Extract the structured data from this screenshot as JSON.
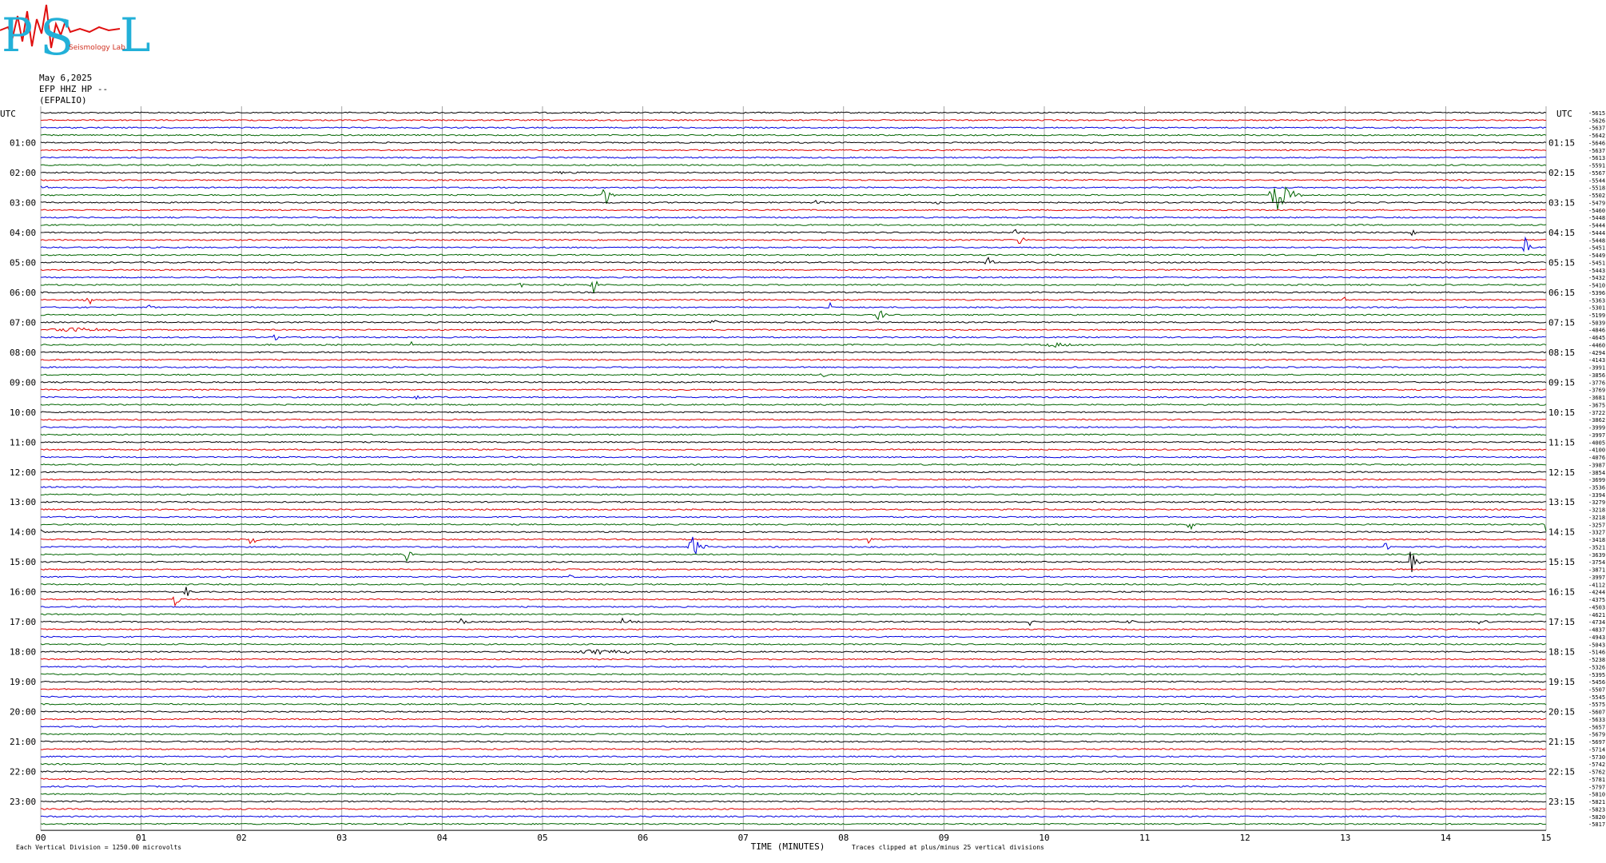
{
  "header": {
    "logo_text": "PSL",
    "logo_subtitle": "Seismology Lab",
    "date": "May 6,2025",
    "channel": "EFP HHZ HP --",
    "station": "(EFPALIO)"
  },
  "colors": {
    "trace_cycle": [
      "#000000",
      "#e00000",
      "#0000e0",
      "#006400"
    ],
    "grid": "#808080",
    "logo_cyan": "#22b0d8",
    "logo_red": "#e01010"
  },
  "chart_data": {
    "type": "helicorder",
    "xlabel": "TIME (MINUTES)",
    "x_ticks": [
      "00",
      "01",
      "02",
      "03",
      "04",
      "05",
      "06",
      "07",
      "08",
      "09",
      "10",
      "11",
      "12",
      "13",
      "14",
      "15"
    ],
    "xlim": [
      0,
      15
    ],
    "left_axis_title": "UTC",
    "right_axis_title": "UTC",
    "left_hour_labels": [
      "01:00",
      "02:00",
      "03:00",
      "04:00",
      "05:00",
      "06:00",
      "07:00",
      "08:00",
      "09:00",
      "10:00",
      "11:00",
      "12:00",
      "13:00",
      "14:00",
      "15:00",
      "16:00",
      "17:00",
      "18:00",
      "19:00",
      "20:00",
      "21:00",
      "22:00",
      "23:00"
    ],
    "right_hour_labels": [
      "01:15",
      "02:15",
      "03:15",
      "04:15",
      "05:15",
      "06:15",
      "07:15",
      "08:15",
      "09:15",
      "10:15",
      "11:15",
      "12:15",
      "13:15",
      "14:15",
      "15:15",
      "16:15",
      "17:15",
      "18:15",
      "19:15",
      "20:15",
      "21:15",
      "22:15",
      "23:15"
    ],
    "line_count": 96,
    "minutes_per_line": 15,
    "line_offsets": [
      "-5615",
      "-5626",
      "-5637",
      "-5642",
      "-5646",
      "-5637",
      "-5613",
      "-5591",
      "-5567",
      "-5544",
      "-5518",
      "-5502",
      "-5479",
      "-5460",
      "-5448",
      "-5444",
      "-5444",
      "-5448",
      "-5451",
      "-5449",
      "-5451",
      "-5443",
      "-5432",
      "-5410",
      "-5396",
      "-5363",
      "-5301",
      "-5199",
      "-5039",
      "-4846",
      "-4645",
      "-4460",
      "-4294",
      "-4143",
      "-3991",
      "-3856",
      "-3776",
      "-3769",
      "-3681",
      "-3675",
      "-3722",
      "-3862",
      "-3999",
      "-3997",
      "-4005",
      "-4100",
      "-4076",
      "-3987",
      "-3854",
      "-3699",
      "-3536",
      "-3394",
      "-3279",
      "-3218",
      "-3218",
      "-3257",
      "-3327",
      "-3418",
      "-3521",
      "-3639",
      "-3754",
      "-3871",
      "-3997",
      "-4112",
      "-4244",
      "-4375",
      "-4503",
      "-4621",
      "-4734",
      "-4837",
      "-4943",
      "-5043",
      "-5146",
      "-5238",
      "-5326",
      "-5395",
      "-5456",
      "-5507",
      "-5545",
      "-5575",
      "-5607",
      "-5633",
      "-5657",
      "-5679",
      "-5697",
      "-5714",
      "-5730",
      "-5742",
      "-5762",
      "-5781",
      "-5797",
      "-5810",
      "-5821",
      "-5823",
      "-5820",
      "-5817"
    ],
    "events": [
      {
        "line": 8,
        "minute": 5.1,
        "amp": 2,
        "dur": 0.35
      },
      {
        "line": 10,
        "minute": 0.0,
        "amp": 2,
        "dur": 0.25
      },
      {
        "line": 11,
        "minute": 5.62,
        "amp": 16,
        "dur": 0.12
      },
      {
        "line": 11,
        "minute": 12.32,
        "amp": 22,
        "dur": 0.3
      },
      {
        "line": 12,
        "minute": 7.73,
        "amp": 10,
        "dur": 0.08
      },
      {
        "line": 12,
        "minute": 8.92,
        "amp": 6,
        "dur": 0.08
      },
      {
        "line": 12,
        "minute": 10.43,
        "amp": 4,
        "dur": 0.06
      },
      {
        "line": 16,
        "minute": 9.69,
        "amp": 10,
        "dur": 0.08
      },
      {
        "line": 16,
        "minute": 13.67,
        "amp": 6,
        "dur": 0.08
      },
      {
        "line": 17,
        "minute": 9.75,
        "amp": 9,
        "dur": 0.08
      },
      {
        "line": 18,
        "minute": 14.79,
        "amp": 14,
        "dur": 0.1
      },
      {
        "line": 20,
        "minute": 9.43,
        "amp": 14,
        "dur": 0.08
      },
      {
        "line": 23,
        "minute": 4.78,
        "amp": 10,
        "dur": 0.08
      },
      {
        "line": 23,
        "minute": 5.5,
        "amp": 14,
        "dur": 0.12
      },
      {
        "line": 25,
        "minute": 0.46,
        "amp": 12,
        "dur": 0.12
      },
      {
        "line": 25,
        "minute": 8.6,
        "amp": 8,
        "dur": 0.06
      },
      {
        "line": 25,
        "minute": 12.98,
        "amp": 7,
        "dur": 0.08
      },
      {
        "line": 26,
        "minute": 1.08,
        "amp": 6,
        "dur": 0.06
      },
      {
        "line": 26,
        "minute": 7.86,
        "amp": 8,
        "dur": 0.06
      },
      {
        "line": 27,
        "minute": 8.35,
        "amp": 12,
        "dur": 0.1
      },
      {
        "line": 28,
        "minute": 6.7,
        "amp": 12,
        "dur": 0.08
      },
      {
        "line": 29,
        "minute": 0.3,
        "amp": 3,
        "dur": 1.0
      },
      {
        "line": 30,
        "minute": 2.3,
        "amp": 12,
        "dur": 0.1
      },
      {
        "line": 31,
        "minute": 3.7,
        "amp": 11,
        "dur": 0.08
      },
      {
        "line": 31,
        "minute": 10.1,
        "amp": 3,
        "dur": 0.6
      },
      {
        "line": 35,
        "minute": 7.8,
        "amp": 3,
        "dur": 0.2
      },
      {
        "line": 38,
        "minute": 3.75,
        "amp": 4,
        "dur": 0.25
      },
      {
        "line": 55,
        "minute": 11.45,
        "amp": 12,
        "dur": 0.1
      },
      {
        "line": 55,
        "minute": 15.0,
        "amp": 14,
        "dur": 0.06
      },
      {
        "line": 56,
        "minute": 0.0,
        "amp": 6,
        "dur": 0.06
      },
      {
        "line": 57,
        "minute": 2.1,
        "amp": 12,
        "dur": 0.1
      },
      {
        "line": 57,
        "minute": 8.25,
        "amp": 6,
        "dur": 0.06
      },
      {
        "line": 58,
        "minute": 6.5,
        "amp": 14,
        "dur": 0.2
      },
      {
        "line": 58,
        "minute": 13.4,
        "amp": 8,
        "dur": 0.08
      },
      {
        "line": 59,
        "minute": 3.65,
        "amp": 20,
        "dur": 0.1
      },
      {
        "line": 60,
        "minute": 13.65,
        "amp": 18,
        "dur": 0.12
      },
      {
        "line": 62,
        "minute": 5.28,
        "amp": 10,
        "dur": 0.06
      },
      {
        "line": 64,
        "minute": 1.45,
        "amp": 8,
        "dur": 0.08
      },
      {
        "line": 65,
        "minute": 1.33,
        "amp": 10,
        "dur": 0.1
      },
      {
        "line": 68,
        "minute": 4.18,
        "amp": 8,
        "dur": 0.12
      },
      {
        "line": 68,
        "minute": 5.8,
        "amp": 4,
        "dur": 0.2
      },
      {
        "line": 68,
        "minute": 9.86,
        "amp": 8,
        "dur": 0.1
      },
      {
        "line": 68,
        "minute": 10.85,
        "amp": 8,
        "dur": 0.1
      },
      {
        "line": 68,
        "minute": 14.35,
        "amp": 8,
        "dur": 0.1
      },
      {
        "line": 72,
        "minute": 5.6,
        "amp": 3,
        "dur": 1.2
      }
    ],
    "footer_left": "Each Vertical Division = 1250.00 microvolts",
    "footer_right": "Traces clipped at plus/minus 25 vertical divisions"
  }
}
